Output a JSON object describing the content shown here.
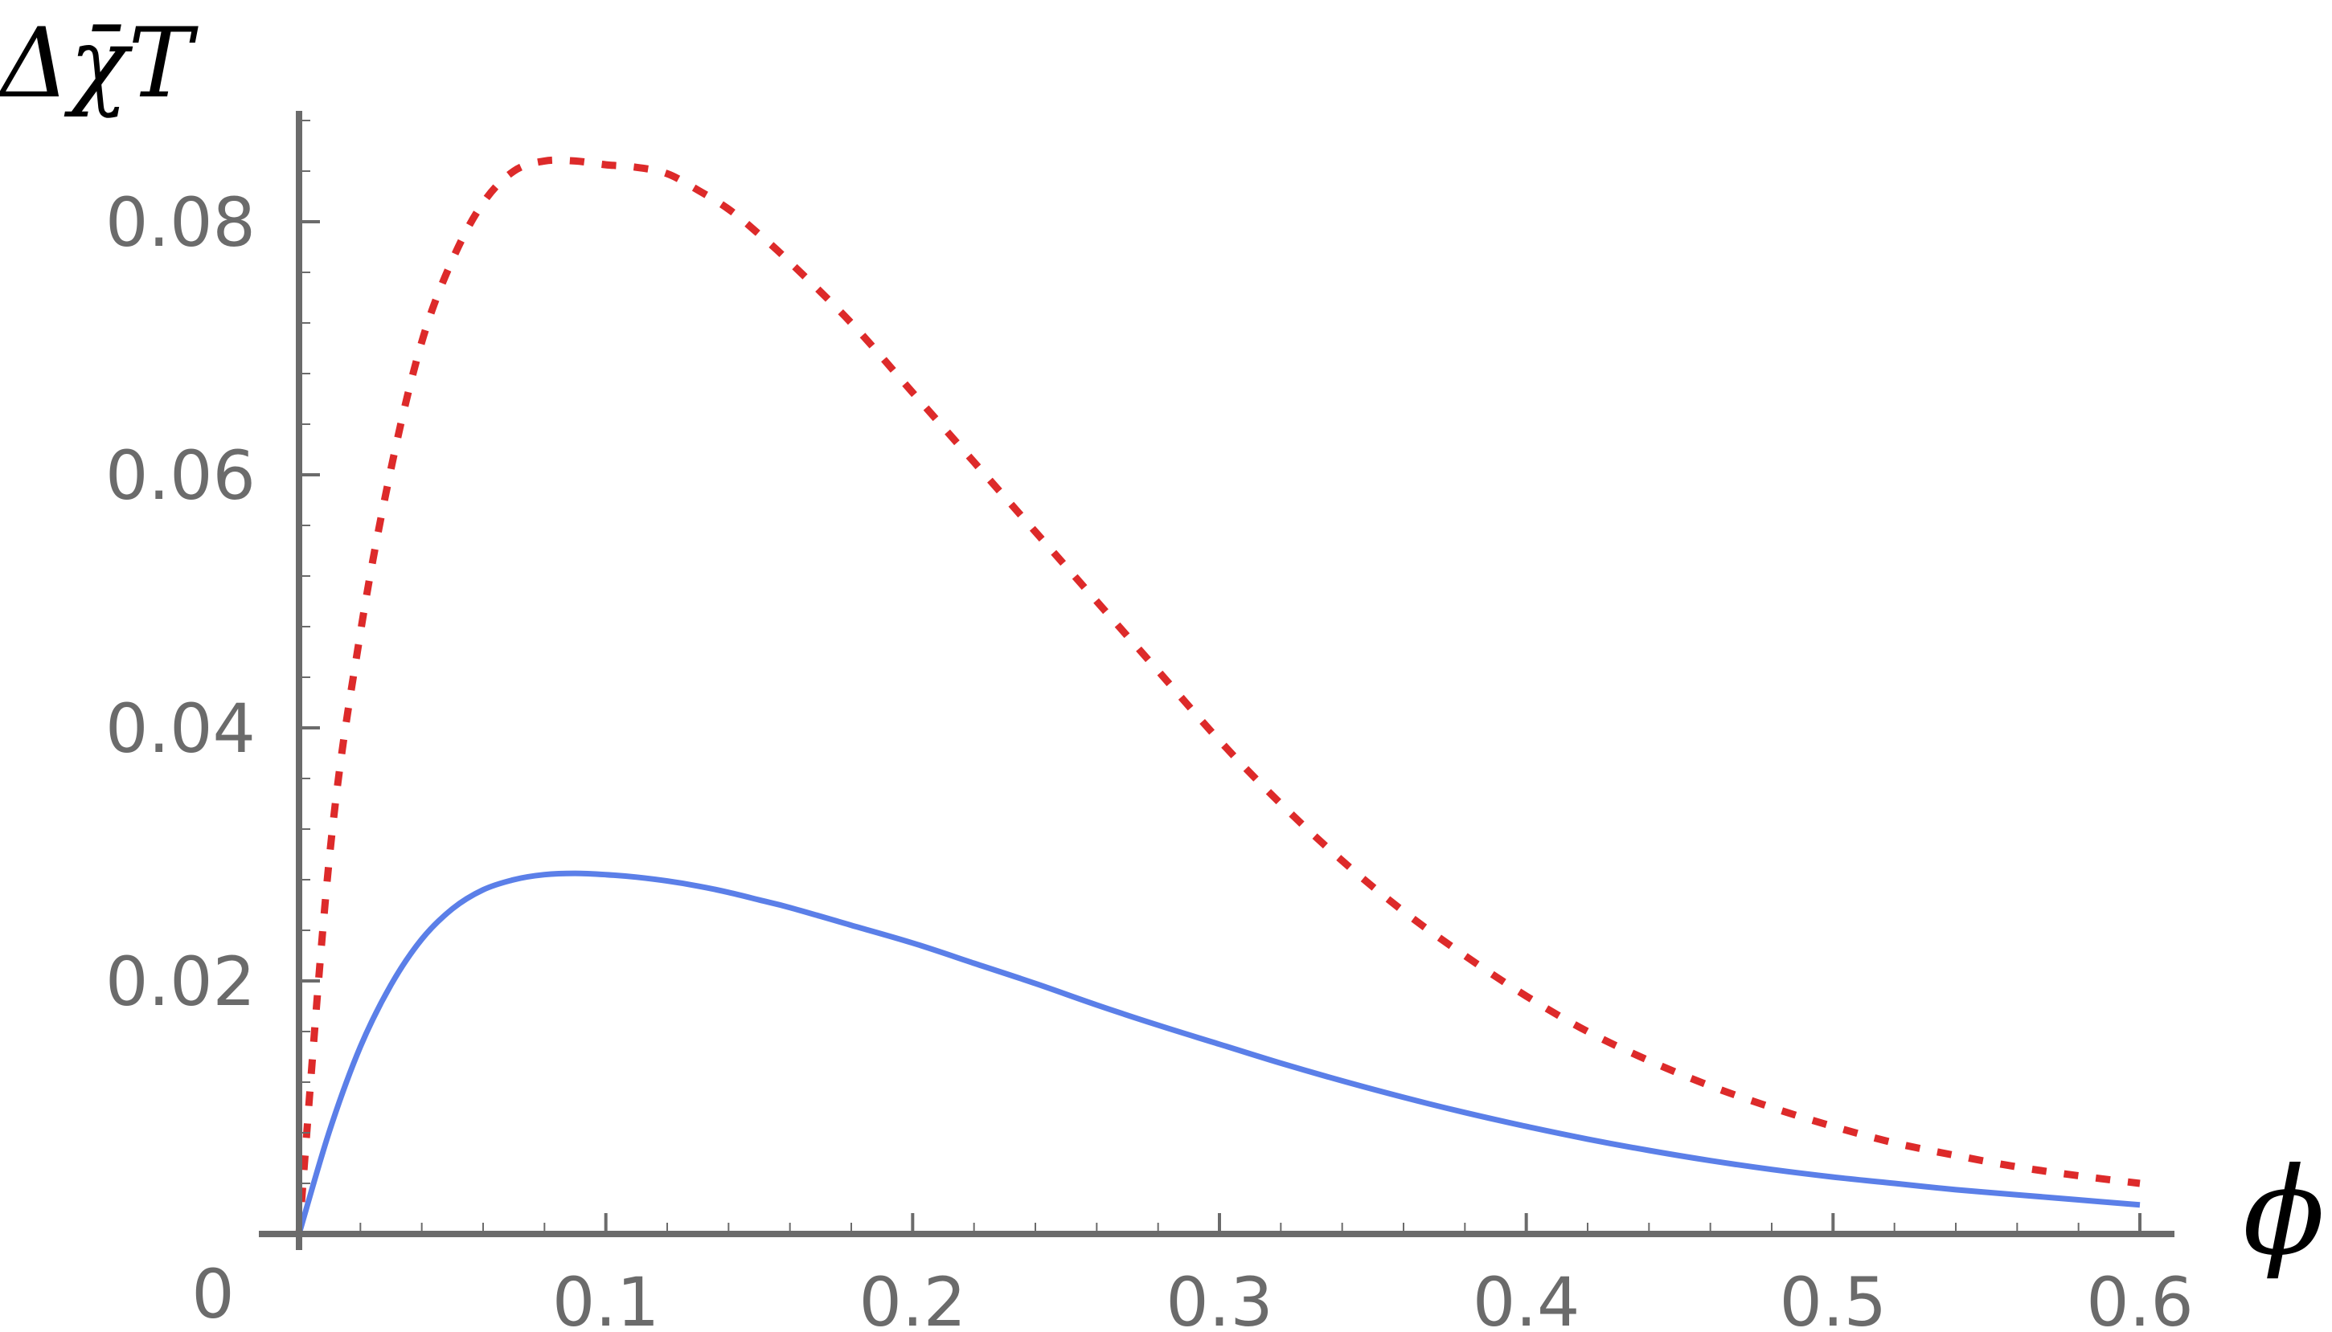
{
  "chart_data": {
    "type": "line",
    "title": "",
    "xlabel": "ϕ",
    "ylabel": "Δχ̄T",
    "xlim": [
      0,
      0.6
    ],
    "ylim": [
      0,
      0.088
    ],
    "grid": false,
    "legend": "none",
    "xticks": [
      0.1,
      0.2,
      0.3,
      0.4,
      0.5,
      0.6
    ],
    "xtick_labels": [
      "0.1",
      "0.2",
      "0.3",
      "0.4",
      "0.5",
      "0.6"
    ],
    "yticks": [
      0.02,
      0.04,
      0.06,
      0.08
    ],
    "ytick_labels": [
      "0.02",
      "0.04",
      "0.06",
      "0.08"
    ],
    "origin_label": "0",
    "x": [
      0,
      0.01,
      0.02,
      0.03,
      0.04,
      0.05,
      0.06,
      0.07,
      0.08,
      0.09,
      0.1,
      0.11,
      0.12,
      0.13,
      0.14,
      0.15,
      0.16,
      0.18,
      0.2,
      0.22,
      0.24,
      0.26,
      0.28,
      0.3,
      0.32,
      0.34,
      0.36,
      0.38,
      0.4,
      0.42,
      0.44,
      0.46,
      0.48,
      0.5,
      0.52,
      0.54,
      0.56,
      0.58,
      0.6
    ],
    "series": [
      {
        "style": "dotted",
        "color": "#dd2a2a",
        "values": [
          0,
          0.03,
          0.0475,
          0.0605,
          0.0705,
          0.077,
          0.0815,
          0.084,
          0.0848,
          0.0848,
          0.0845,
          0.0843,
          0.0838,
          0.0825,
          0.081,
          0.079,
          0.0768,
          0.072,
          0.0665,
          0.061,
          0.0555,
          0.05,
          0.0445,
          0.039,
          0.034,
          0.0295,
          0.0255,
          0.022,
          0.0188,
          0.016,
          0.0137,
          0.0117,
          0.01,
          0.0085,
          0.0072,
          0.0062,
          0.0053,
          0.0046,
          0.004
        ]
      },
      {
        "style": "solid",
        "color": "#5b7fe8",
        "values": [
          0,
          0.0082,
          0.0148,
          0.0197,
          0.0233,
          0.0257,
          0.0272,
          0.028,
          0.0284,
          0.0285,
          0.0284,
          0.0282,
          0.0279,
          0.0275,
          0.027,
          0.0264,
          0.0258,
          0.0244,
          0.023,
          0.0214,
          0.0198,
          0.0181,
          0.0165,
          0.015,
          0.0135,
          0.0121,
          0.0108,
          0.0096,
          0.0085,
          0.0075,
          0.0066,
          0.0058,
          0.0051,
          0.0045,
          0.004,
          0.0035,
          0.0031,
          0.0027,
          0.0023
        ]
      }
    ]
  }
}
